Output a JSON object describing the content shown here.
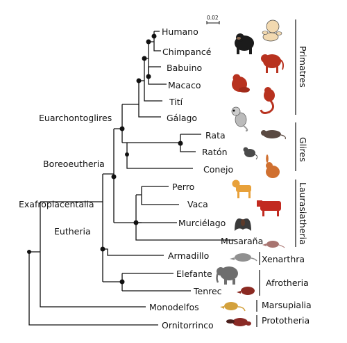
{
  "scale_bar": {
    "label": "0.02"
  },
  "tips": [
    "Humano",
    "Chimpancé",
    "Babuino",
    "Macaco",
    "Tití",
    "Gálago",
    "Rata",
    "Ratón",
    "Conejo",
    "Perro",
    "Vaca",
    "Murciélago",
    "Musaraña",
    "Armadillo",
    "Elefante",
    "Tenrec",
    "Monodelfos",
    "Ornitorrinco"
  ],
  "node_labels": [
    "Euarchontoglires",
    "Boreoeutheria",
    "Exafroplacentalia",
    "Eutheria"
  ],
  "groups": [
    "Primatres",
    "Glires",
    "Laurasiatheria",
    "Xenarthra",
    "Afrotheria",
    "Marsupialia",
    "Prototheria"
  ],
  "icons": [
    "human-icon",
    "chimpanzee-icon",
    "baboon-icon",
    "macaque-icon",
    "titi-monkey-icon",
    "galago-icon",
    "rat-icon",
    "mouse-icon",
    "rabbit-icon",
    "dog-icon",
    "cow-icon",
    "bat-icon",
    "shrew-icon",
    "armadillo-icon",
    "elephant-icon",
    "tenrec-icon",
    "opossum-icon",
    "platypus-icon"
  ]
}
